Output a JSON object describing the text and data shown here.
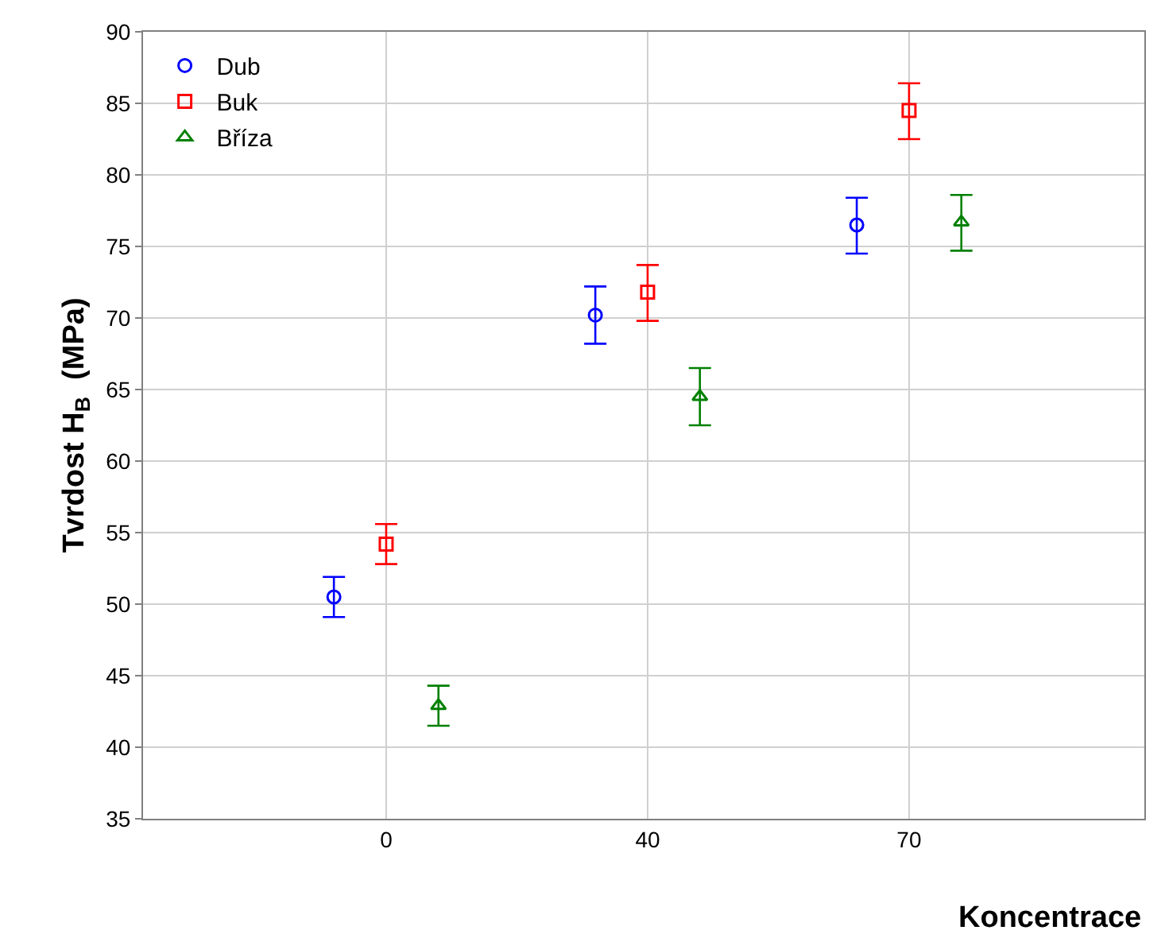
{
  "chart_data": {
    "type": "scatter",
    "xlabel": "Koncentrace",
    "ylabel": "Tvrdost H$_{B}$  (MPa)",
    "categories": [
      "0",
      "40",
      "70"
    ],
    "series": [
      {
        "name": "Dub",
        "color": "#0000ff",
        "marker": "circle",
        "values": [
          50.5,
          70.2,
          76.5
        ],
        "errors": [
          [
            49.1,
            51.9
          ],
          [
            68.2,
            72.2
          ],
          [
            74.5,
            78.4
          ]
        ]
      },
      {
        "name": "Buk",
        "color": "#ff0000",
        "marker": "square",
        "values": [
          54.2,
          71.8,
          84.5
        ],
        "errors": [
          [
            52.8,
            55.6
          ],
          [
            69.8,
            73.7
          ],
          [
            82.5,
            86.4
          ]
        ]
      },
      {
        "name": "Bříza",
        "color": "#008000",
        "marker": "triangle",
        "values": [
          42.9,
          64.5,
          76.7
        ],
        "errors": [
          [
            41.5,
            44.3
          ],
          [
            62.5,
            66.5
          ],
          [
            74.7,
            78.6
          ]
        ]
      }
    ],
    "ylim": [
      35,
      90
    ],
    "yticks": [
      35,
      40,
      45,
      50,
      55,
      60,
      65,
      70,
      75,
      80,
      85,
      90
    ],
    "grid": true,
    "legend": "top left"
  }
}
